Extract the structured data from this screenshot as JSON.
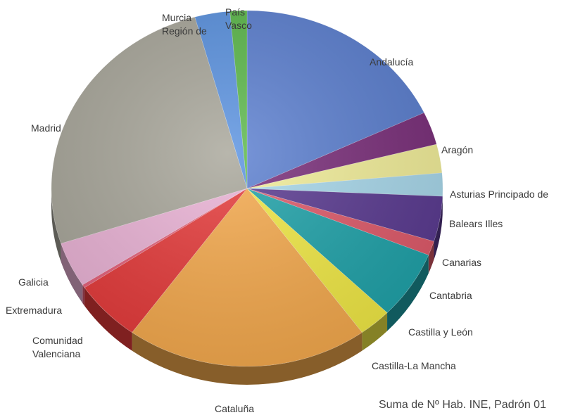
{
  "chart_data": {
    "type": "pie",
    "title": "",
    "note": "Suma de Nº Hab. INE, Padrón 01",
    "slices": [
      {
        "label": "Andalucía",
        "value": 18.0,
        "color": "#5b7fd0"
      },
      {
        "label": "Aragón",
        "value": 3.0,
        "color": "#7a2e7a"
      },
      {
        "label": "Asturias Principado de",
        "value": 2.6,
        "color": "#f3ef9a"
      },
      {
        "label": "Balears Illes",
        "value": 2.1,
        "color": "#a9d9ec"
      },
      {
        "label": "Canarias",
        "value": 4.1,
        "color": "#5a3a91"
      },
      {
        "label": "Cantabria",
        "value": 1.3,
        "color": "#e05a6a"
      },
      {
        "label": "Castilla y León",
        "value": 6.2,
        "color": "#1fa3aa"
      },
      {
        "label": "Castilla-La Mancha",
        "value": 2.7,
        "color": "#f2ea45"
      },
      {
        "label": "Cataluña",
        "value": 20.0,
        "color": "#f6aa4d"
      },
      {
        "label": "Comunidad\nValenciana",
        "value": 5.6,
        "color": "#e63a3a"
      },
      {
        "label": "Extremadura",
        "value": 0.3,
        "color": "#e6607a"
      },
      {
        "label": "Galicia",
        "value": 4.1,
        "color": "#ebb3d6"
      },
      {
        "label": "Madrid",
        "value": 25.7,
        "color": "#a8a69a"
      },
      {
        "label": "Murcia\nRegión de",
        "value": 2.9,
        "color": "#5a92e0"
      },
      {
        "label": "País\nVasco",
        "value": 1.4,
        "color": "#5bb84a"
      }
    ]
  }
}
